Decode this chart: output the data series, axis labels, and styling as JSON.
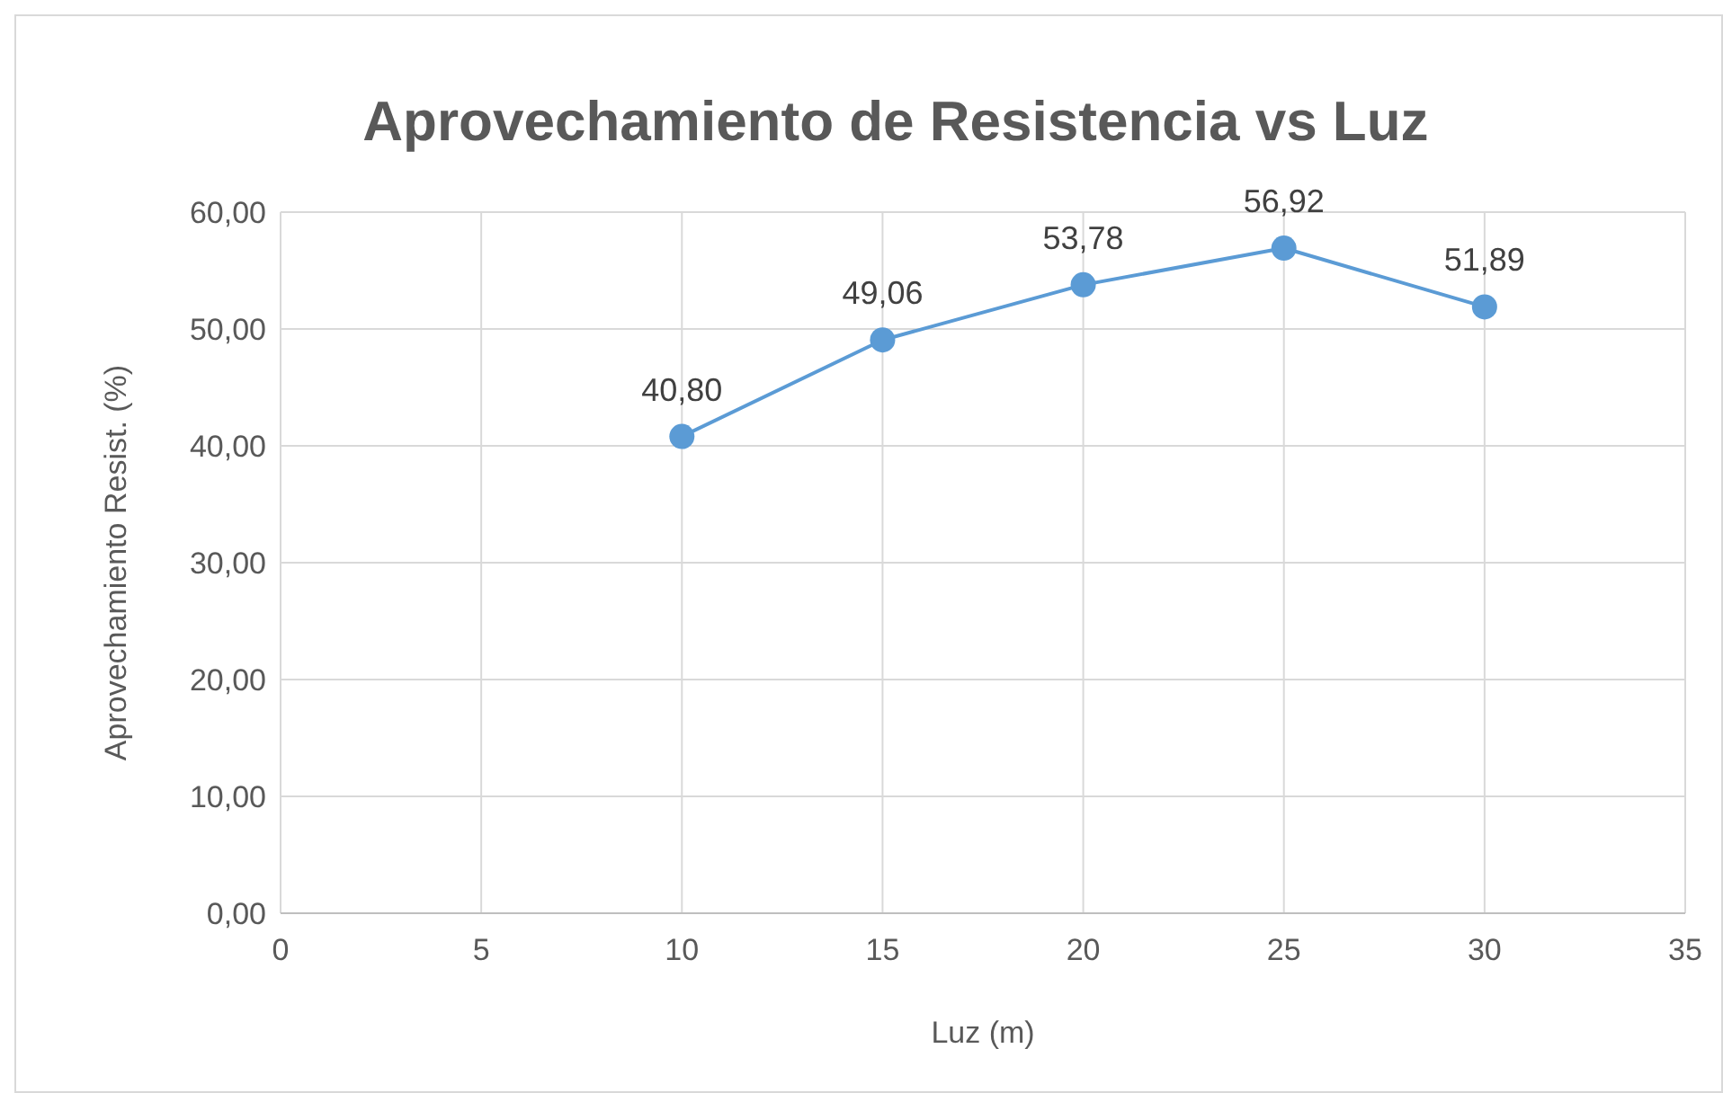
{
  "chart_data": {
    "type": "line",
    "title": "Aprovechamiento de Resistencia vs Luz",
    "xlabel": "Luz (m)",
    "ylabel": "Aprovechamiento Resist. (%)",
    "x": [
      10,
      15,
      20,
      25,
      30
    ],
    "series": [
      {
        "color": "#5b9bd5",
        "values": [
          40.8,
          49.06,
          53.78,
          56.92,
          51.89
        ],
        "value_labels": [
          "40,80",
          "49,06",
          "53,78",
          "56,92",
          "51,89"
        ]
      }
    ],
    "xlim": [
      0,
      35
    ],
    "xticks": [
      0,
      5,
      10,
      15,
      20,
      25,
      30,
      35
    ],
    "ylim": [
      0,
      60
    ],
    "yticks": [
      {
        "value": 0,
        "label": "0,00"
      },
      {
        "value": 10,
        "label": "10,00"
      },
      {
        "value": 20,
        "label": "20,00"
      },
      {
        "value": 30,
        "label": "30,00"
      },
      {
        "value": 40,
        "label": "40,00"
      },
      {
        "value": 50,
        "label": "50,00"
      },
      {
        "value": 60,
        "label": "60,00"
      }
    ],
    "grid": true,
    "marker": "circle",
    "line_style": "solid"
  }
}
